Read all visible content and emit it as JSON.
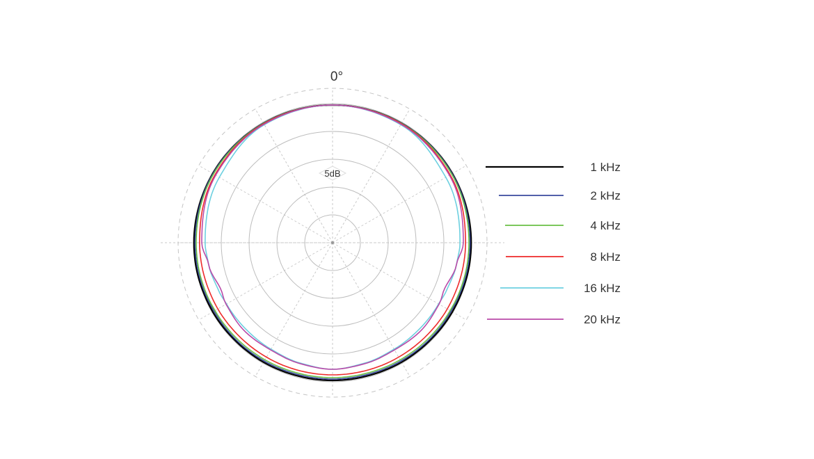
{
  "chart_data": {
    "type": "polar-line",
    "angle_label": "0°",
    "scale_label": "5dB",
    "radial_unit": "dB",
    "ring_step_db": 5,
    "rings_db": [
      -20,
      -15,
      -10,
      -5,
      0
    ],
    "outer_ring_db": 2.75,
    "spoke_step_deg": 30,
    "grid": true,
    "legend_placement": "right",
    "symmetric": true,
    "angles_deg": [
      0,
      30,
      60,
      90,
      100,
      113,
      120,
      135,
      150,
      165,
      180
    ],
    "series": [
      {
        "name": "1 kHz",
        "color": "#000000",
        "values": [
          -0.25,
          -0.2,
          -0.15,
          -0.1,
          -0.1,
          -0.15,
          -0.15,
          -0.2,
          -0.2,
          -0.25,
          -0.25
        ]
      },
      {
        "name": "2 kHz",
        "color": "#3a4a9e",
        "values": [
          -0.25,
          -0.2,
          -0.2,
          -0.3,
          -0.3,
          -0.35,
          -0.4,
          -0.4,
          -0.45,
          -0.5,
          -0.5
        ]
      },
      {
        "name": "4 kHz",
        "color": "#6abf45",
        "values": [
          -0.25,
          -0.25,
          -0.3,
          -0.5,
          -0.5,
          -0.55,
          -0.6,
          -0.65,
          -0.7,
          -0.75,
          -0.75
        ]
      },
      {
        "name": "8 kHz",
        "color": "#ee2a2a",
        "values": [
          -0.25,
          -0.3,
          -0.6,
          -1.1,
          -1.15,
          -1.2,
          -1.2,
          -1.25,
          -1.25,
          -1.25,
          -1.25
        ]
      },
      {
        "name": "16 kHz",
        "color": "#6dd0e0",
        "values": [
          -0.25,
          -0.5,
          -1.5,
          -2.1,
          -2.4,
          -2.8,
          -3.0,
          -3.0,
          -2.9,
          -2.6,
          -2.25
        ]
      },
      {
        "name": "20 kHz",
        "color": "#b94aa8",
        "values": [
          -0.25,
          -0.4,
          -0.75,
          -1.5,
          -2.4,
          -3.25,
          -2.9,
          -2.6,
          -2.75,
          -2.5,
          -2.25
        ]
      }
    ]
  }
}
